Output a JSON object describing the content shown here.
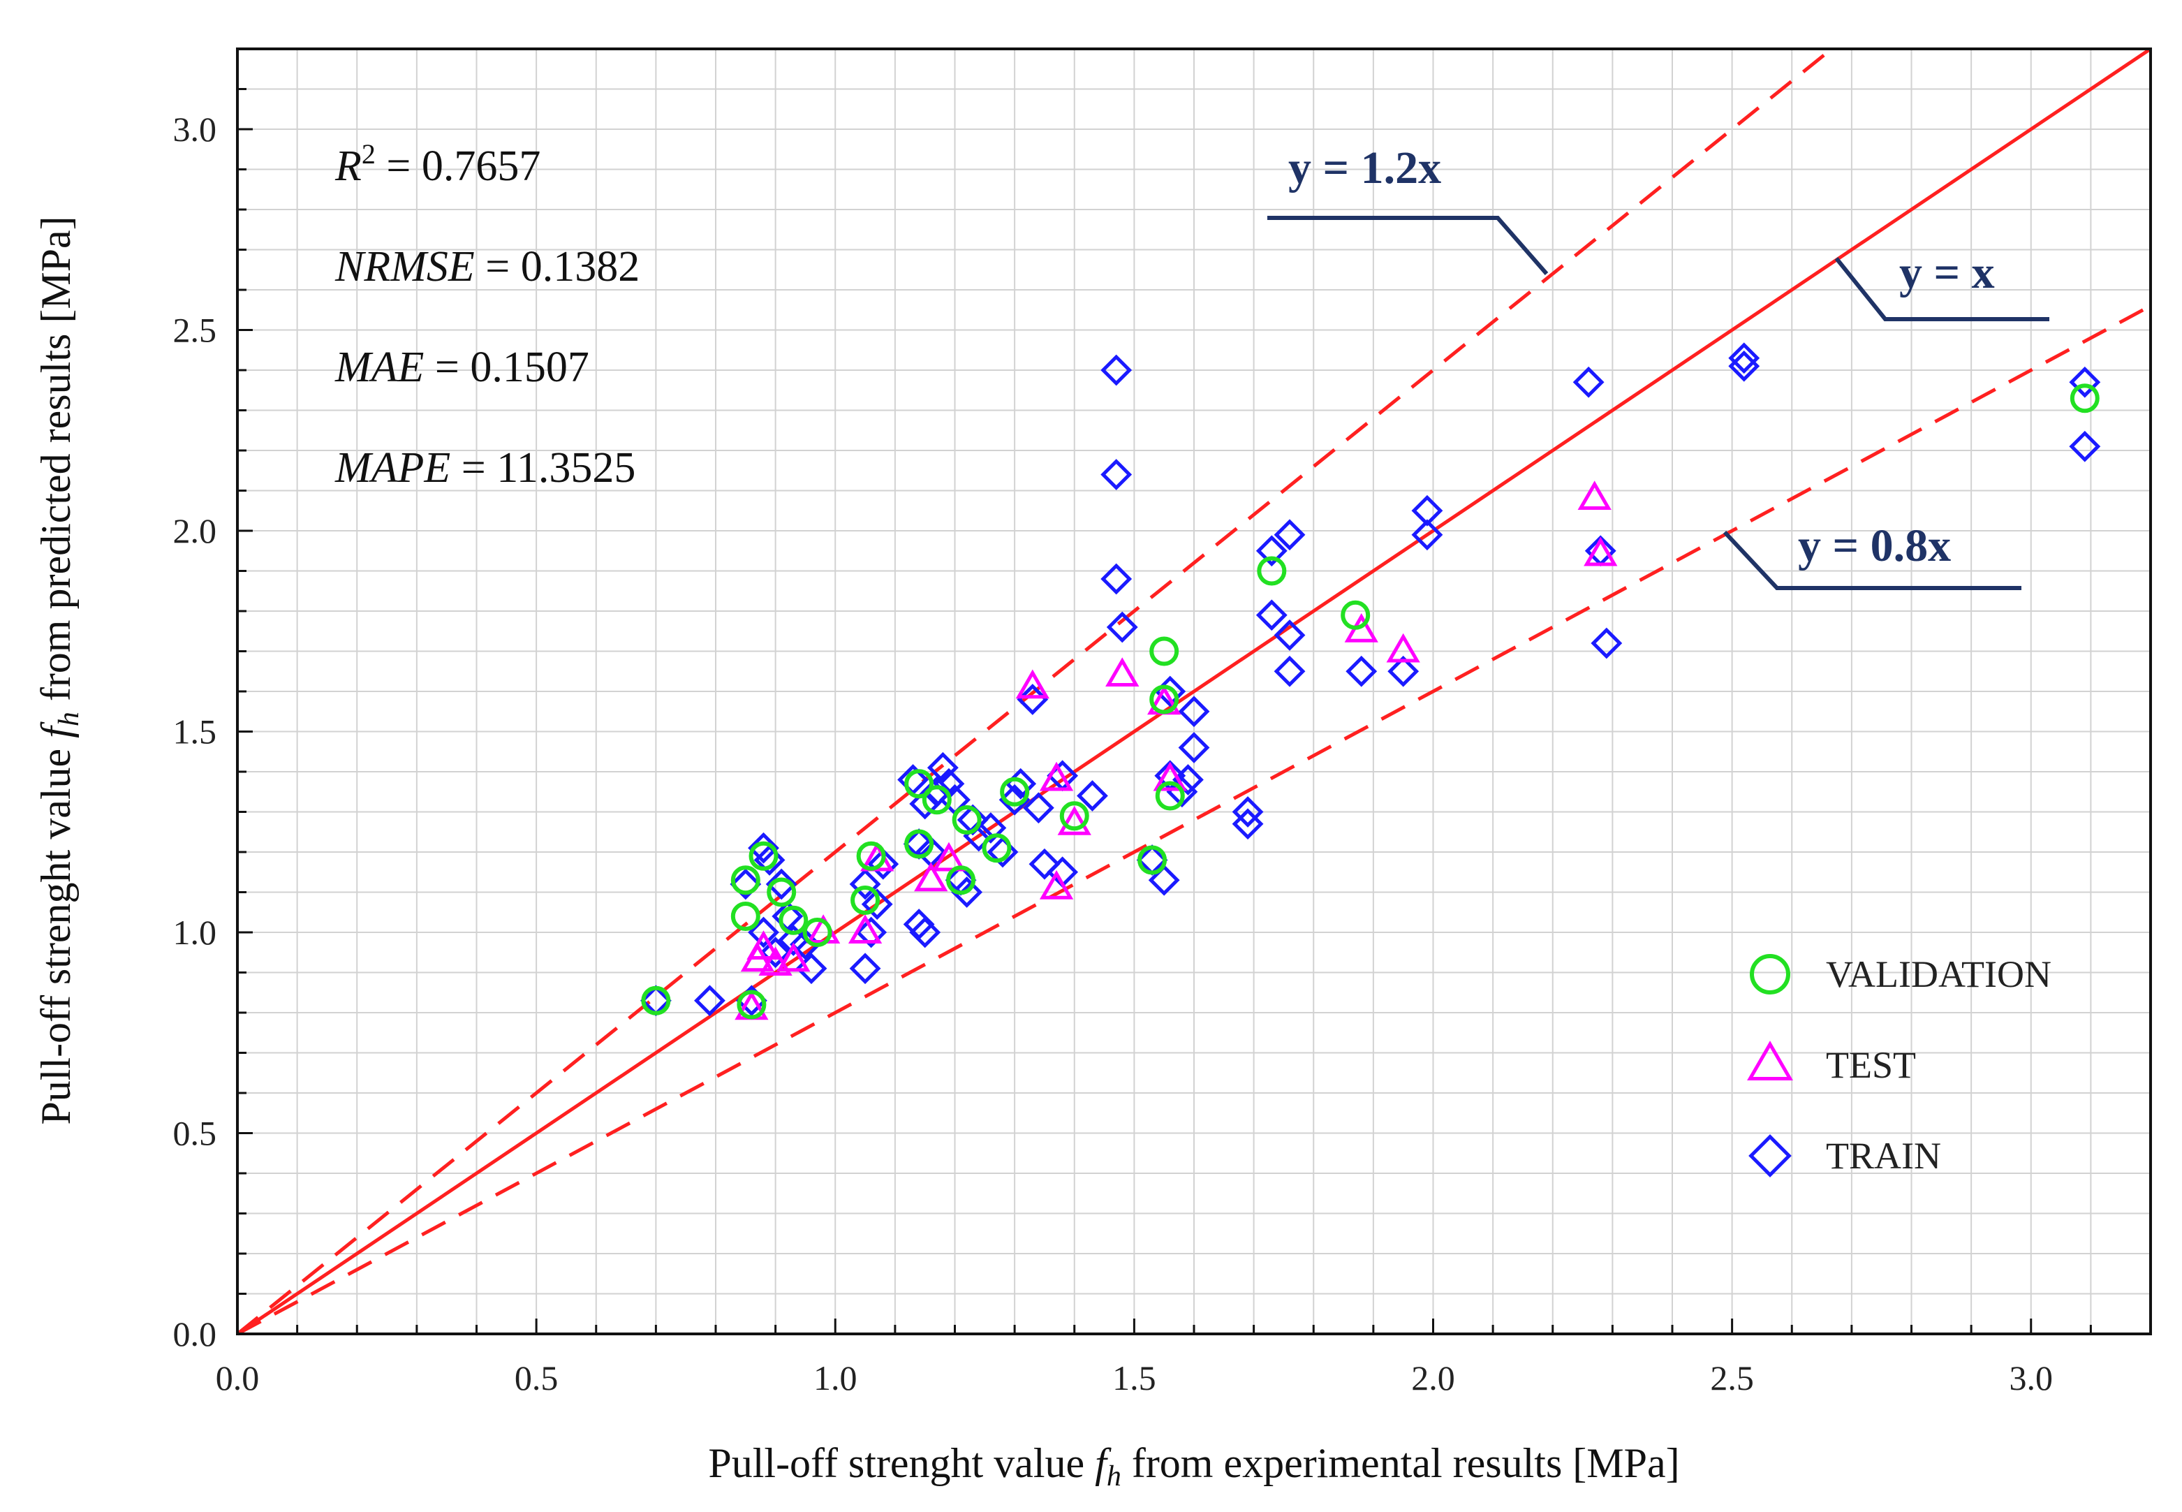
{
  "chart_data": {
    "type": "scatter",
    "xlabel": {
      "pre": "Pull-off strenght  value ",
      "var": "f",
      "sub": "h",
      "post": " from experimental results [MPa]"
    },
    "ylabel": {
      "pre": "Pull-off strenght  value ",
      "var": "f",
      "sub": "h",
      "post": " from predicted results [MPa]"
    },
    "xlim": [
      0,
      3.2
    ],
    "ylim": [
      0,
      3.2
    ],
    "x_ticks": [
      "0.0",
      "0.5",
      "1.0",
      "1.5",
      "2.0",
      "2.5",
      "3.0"
    ],
    "y_ticks": [
      "0.0",
      "0.5",
      "1.0",
      "1.5",
      "2.0",
      "2.5",
      "3.0"
    ],
    "grid": true,
    "legend_position": "bottom-right",
    "stats": [
      {
        "label": "R",
        "sup": "2",
        "value": " = 0.7657"
      },
      {
        "label": "NRMSE",
        "sup": "",
        "value": " = 0.1382"
      },
      {
        "label": "MAE",
        "sup": "",
        "value": " = 0.1507"
      },
      {
        "label": "MAPE",
        "sup": "",
        "value": "  = 11.3525"
      }
    ],
    "reference_lines": [
      {
        "name": "y = x",
        "slope": 1.0,
        "style": "solid",
        "color": "#ff2020"
      },
      {
        "name": "y = 1.2x",
        "slope": 1.2,
        "style": "dashed",
        "color": "#ff2020"
      },
      {
        "name": "y = 0.8x",
        "slope": 0.8,
        "style": "dashed",
        "color": "#ff2020"
      }
    ],
    "series": [
      {
        "name": "TRAIN",
        "marker": "diamond",
        "color": "#1a1aff",
        "points": [
          [
            0.7,
            0.83
          ],
          [
            0.79,
            0.83
          ],
          [
            0.85,
            1.12
          ],
          [
            0.86,
            0.83
          ],
          [
            0.88,
            1.21
          ],
          [
            0.89,
            1.18
          ],
          [
            0.91,
            1.12
          ],
          [
            0.92,
            1.04
          ],
          [
            0.93,
            0.98
          ],
          [
            0.95,
            0.97
          ],
          [
            0.96,
            0.91
          ],
          [
            0.88,
            1.0
          ],
          [
            0.9,
            0.95
          ],
          [
            1.05,
            1.12
          ],
          [
            1.05,
            0.91
          ],
          [
            1.06,
            1.0
          ],
          [
            1.07,
            1.07
          ],
          [
            1.08,
            1.17
          ],
          [
            1.13,
            1.38
          ],
          [
            1.14,
            1.22
          ],
          [
            1.14,
            1.02
          ],
          [
            1.15,
            1.0
          ],
          [
            1.15,
            1.32
          ],
          [
            1.16,
            1.2
          ],
          [
            1.17,
            1.35
          ],
          [
            1.18,
            1.41
          ],
          [
            1.19,
            1.37
          ],
          [
            1.2,
            1.33
          ],
          [
            1.21,
            1.13
          ],
          [
            1.22,
            1.1
          ],
          [
            1.23,
            1.28
          ],
          [
            1.24,
            1.24
          ],
          [
            1.26,
            1.26
          ],
          [
            1.28,
            1.2
          ],
          [
            1.3,
            1.33
          ],
          [
            1.31,
            1.37
          ],
          [
            1.33,
            1.58
          ],
          [
            1.34,
            1.31
          ],
          [
            1.35,
            1.17
          ],
          [
            1.38,
            1.15
          ],
          [
            1.38,
            1.39
          ],
          [
            1.43,
            1.34
          ],
          [
            1.47,
            2.4
          ],
          [
            1.47,
            2.14
          ],
          [
            1.47,
            1.88
          ],
          [
            1.48,
            1.76
          ],
          [
            1.53,
            1.18
          ],
          [
            1.55,
            1.13
          ],
          [
            1.56,
            1.6
          ],
          [
            1.56,
            1.39
          ],
          [
            1.58,
            1.35
          ],
          [
            1.59,
            1.38
          ],
          [
            1.6,
            1.55
          ],
          [
            1.6,
            1.46
          ],
          [
            1.69,
            1.3
          ],
          [
            1.69,
            1.27
          ],
          [
            1.73,
            1.95
          ],
          [
            1.73,
            1.79
          ],
          [
            1.76,
            1.99
          ],
          [
            1.76,
            1.74
          ],
          [
            1.76,
            1.65
          ],
          [
            1.88,
            1.65
          ],
          [
            1.95,
            1.65
          ],
          [
            1.99,
            2.05
          ],
          [
            1.99,
            1.99
          ],
          [
            2.26,
            2.37
          ],
          [
            2.28,
            1.95
          ],
          [
            2.29,
            1.72
          ],
          [
            2.52,
            2.43
          ],
          [
            2.52,
            2.41
          ],
          [
            3.09,
            2.37
          ],
          [
            3.09,
            2.21
          ]
        ]
      },
      {
        "name": "TEST",
        "marker": "triangle",
        "color": "#ff00ff",
        "points": [
          [
            0.86,
            0.81
          ],
          [
            0.87,
            0.93
          ],
          [
            0.88,
            0.96
          ],
          [
            0.9,
            0.92
          ],
          [
            0.93,
            0.93
          ],
          [
            0.98,
            1.0
          ],
          [
            1.05,
            1.0
          ],
          [
            1.07,
            1.18
          ],
          [
            1.16,
            1.13
          ],
          [
            1.19,
            1.18
          ],
          [
            1.33,
            1.61
          ],
          [
            1.37,
            1.38
          ],
          [
            1.37,
            1.11
          ],
          [
            1.4,
            1.27
          ],
          [
            1.48,
            1.64
          ],
          [
            1.55,
            1.57
          ],
          [
            1.56,
            1.38
          ],
          [
            1.88,
            1.75
          ],
          [
            1.95,
            1.7
          ],
          [
            2.27,
            2.08
          ],
          [
            2.28,
            1.94
          ]
        ]
      },
      {
        "name": "VALIDATION",
        "marker": "circle",
        "color": "#22e022",
        "points": [
          [
            0.7,
            0.83
          ],
          [
            0.85,
            1.13
          ],
          [
            0.85,
            1.04
          ],
          [
            0.86,
            0.82
          ],
          [
            0.88,
            1.19
          ],
          [
            0.91,
            1.1
          ],
          [
            0.93,
            1.03
          ],
          [
            0.97,
            1.0
          ],
          [
            1.05,
            1.08
          ],
          [
            1.06,
            1.19
          ],
          [
            1.14,
            1.37
          ],
          [
            1.14,
            1.22
          ],
          [
            1.17,
            1.33
          ],
          [
            1.21,
            1.13
          ],
          [
            1.22,
            1.28
          ],
          [
            1.27,
            1.21
          ],
          [
            1.3,
            1.35
          ],
          [
            1.4,
            1.29
          ],
          [
            1.53,
            1.18
          ],
          [
            1.55,
            1.7
          ],
          [
            1.55,
            1.58
          ],
          [
            1.56,
            1.34
          ],
          [
            1.73,
            1.9
          ],
          [
            1.87,
            1.79
          ],
          [
            3.09,
            2.33
          ]
        ]
      }
    ]
  }
}
